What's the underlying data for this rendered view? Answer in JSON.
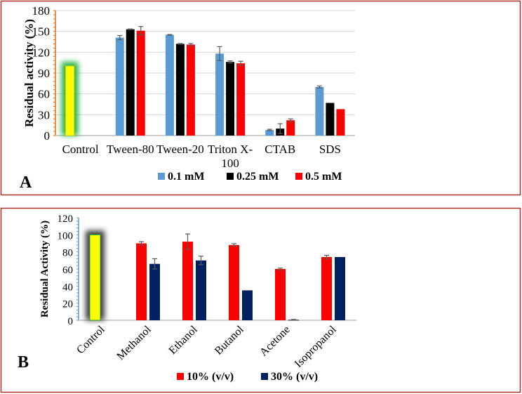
{
  "chart_data": [
    {
      "type": "bar",
      "panel_label": "A",
      "ylabel": "Residual activity  (%)",
      "xlabel": "",
      "ylim": [
        0,
        180
      ],
      "yticks": [
        0,
        30,
        60,
        90,
        120,
        150,
        180
      ],
      "grid": true,
      "legend_position": "bottom",
      "categories": [
        "Control",
        "Tween-80",
        "Tween-20",
        "Triton X-|100",
        "CTAB",
        "SDS"
      ],
      "control": {
        "value": 100,
        "color": "#ffff00",
        "glow": "#1fae3a"
      },
      "series": [
        {
          "name": "0.1 mM",
          "color": "#5b9bd5",
          "values": [
            null,
            141,
            145,
            118,
            8,
            70
          ],
          "errors": [
            null,
            3,
            0.5,
            10,
            1,
            1.5
          ]
        },
        {
          "name": "0.25 mM",
          "color": "#000000",
          "values": [
            null,
            153,
            132,
            106,
            10,
            47
          ],
          "errors": [
            null,
            0.5,
            0.5,
            1.5,
            7,
            0
          ]
        },
        {
          "name": "0.5 mM",
          "color": "#ff0000",
          "values": [
            null,
            151,
            131,
            104,
            22,
            38
          ],
          "errors": [
            null,
            6,
            1.5,
            3,
            2,
            0
          ]
        }
      ]
    },
    {
      "type": "bar",
      "panel_label": "B",
      "ylabel": "Residual Activity (%)",
      "xlabel": "",
      "ylim": [
        0,
        120
      ],
      "yticks": [
        0,
        20,
        40,
        60,
        80,
        100,
        120
      ],
      "grid": false,
      "legend_position": "bottom",
      "categories": [
        "Control",
        "Methanol",
        "Ethanol",
        "Butanol",
        "Acetone",
        "Isopropanol"
      ],
      "control": {
        "value": 100,
        "color": "#ffff00",
        "glow": "#333333"
      },
      "series": [
        {
          "name": "10% (v/v)",
          "color": "#ff0000",
          "values": [
            null,
            90,
            92,
            88,
            60,
            74
          ],
          "errors": [
            null,
            2,
            9,
            1.5,
            1,
            2
          ]
        },
        {
          "name": "30% (v/v)",
          "color": "#002060",
          "values": [
            null,
            66,
            70,
            35,
            0.5,
            74
          ],
          "errors": [
            null,
            6,
            5,
            0,
            0.5,
            0
          ]
        }
      ]
    }
  ]
}
